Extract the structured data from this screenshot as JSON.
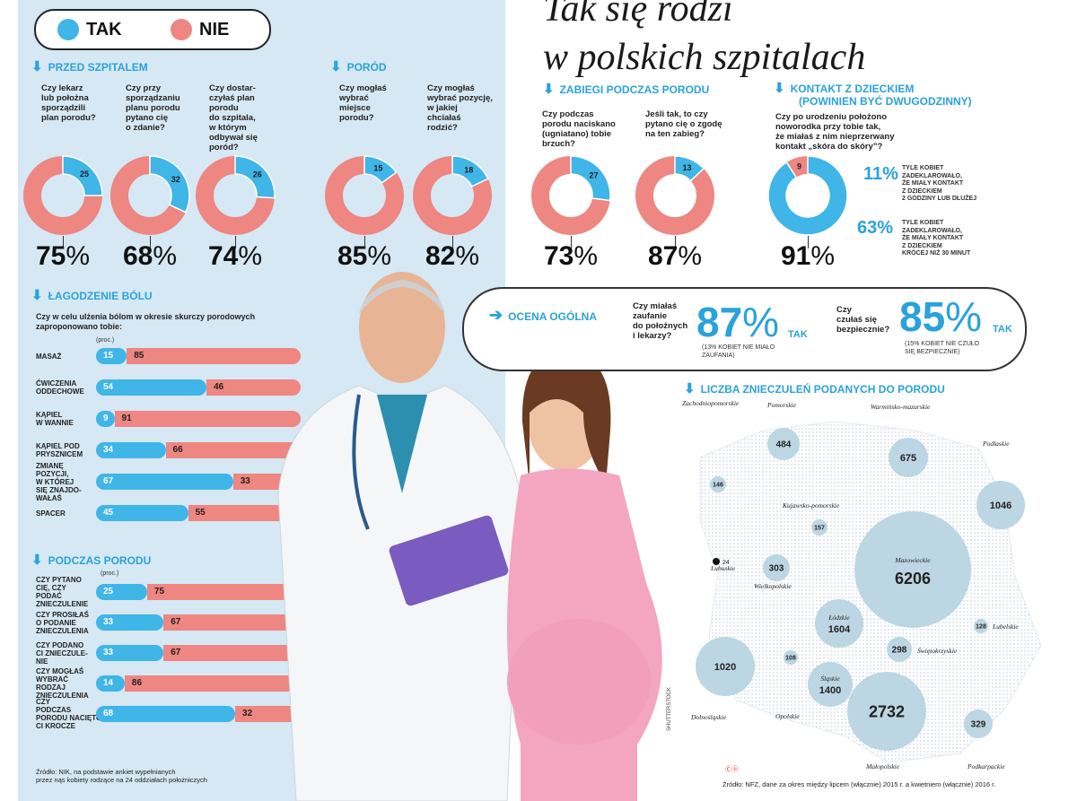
{
  "title": [
    "Tak się rodzi",
    "w polskich szpitalach"
  ],
  "legend": {
    "yes": "TAK",
    "no": "NIE",
    "yes_color": "#3fb5e8",
    "no_color": "#ee8682"
  },
  "sections": {
    "przed": "PRZED SZPITALEM",
    "porod": "PORÓD",
    "zabiegi": "ZABIEGI PODCZAS PORODU",
    "kontakt": [
      "KONTAKT Z DZIECKIEM",
      "(POWINIEN BYĆ DWUGODZINNY)"
    ],
    "lagodzenie": "ŁAGODZENIE BÓLU",
    "podczas": "PODCZAS PORODU",
    "ocena": "OCENA OGÓLNA",
    "liczba": "LICZBA ZNIECZULEŃ PODANYCH DO PORODU"
  },
  "kontakt_question": [
    "Czy po urodzeniu położono",
    "noworodka przy tobie tak,",
    "że miałaś z nim nieprzerwany",
    "kontakt „skóra do skóry”?"
  ],
  "kontakt_notes": [
    {
      "value": "11%",
      "lines": [
        "TYLE KOBIET",
        "ZADEKLAROWAŁO,",
        "ŻE MIAŁY KONTAKT",
        "Z DZIECKIEM",
        "2 GODZINY LUB DŁUŻEJ"
      ]
    },
    {
      "value": "63%",
      "lines": [
        "TYLE KOBIET",
        "ZADEKLAROWAŁO,",
        "ŻE MIAŁY KONTAKT",
        "Z DZIECKIEM",
        "KRÓCEJ NIŻ 30 MINUT"
      ]
    }
  ],
  "lagodzenie_question": [
    "Czy w celu ulżenia bólom w okresie skurczy porodowych",
    "zaproponowano tobie:"
  ],
  "proc": "(proc.)",
  "ocena": [
    {
      "q": [
        "Czy miałaś",
        "zaufanie",
        "do położnych",
        "i lekarzy?"
      ],
      "value": "87%",
      "tak": "TAK",
      "note": [
        "(13% KOBIET NIE MIAŁO",
        "ZAUFANIA)"
      ]
    },
    {
      "q": [
        "Czy",
        "czułaś się",
        "bezpiecznie?"
      ],
      "value": "85%",
      "tak": "TAK",
      "note": [
        "(15% KOBIET NIE CZUŁO",
        "SIĘ BEZPIECZNIE)"
      ]
    }
  ],
  "source_left": [
    "Źródło: NIK, na podstawie ankiet wypełnianych",
    "przez nąs kobiety rodzące na 24 oddziałach położniczych"
  ],
  "source_right": "Źródło: NFZ, dane za okres między lipcem (włącznie) 2015 r. a kwietniem (włącznie) 2016 r.",
  "copyright": "Ⓒⓑ",
  "photo_credit": "SHUTTERSTOCK",
  "map_marker_label": "24",
  "chart_data": [
    {
      "type": "pie",
      "name": "donuts",
      "items": [
        {
          "section": "przed",
          "q": [
            "Czy lekarz",
            "lub położna",
            "sporządzili",
            "plan porodu?"
          ],
          "yes": 25,
          "no": 75,
          "label": "75%"
        },
        {
          "section": "przed",
          "q": [
            "Czy przy",
            "sporządzaniu",
            "planu porodu",
            "pytano cię",
            "o zdanie?"
          ],
          "yes": 32,
          "no": 68,
          "label": "68%"
        },
        {
          "section": "przed",
          "q": [
            "Czy dostar-",
            "czyłaś plan",
            "porodu",
            "do szpitala,",
            "w którym",
            "odbywał się",
            "poród?"
          ],
          "yes": 26,
          "no": 74,
          "label": "74%"
        },
        {
          "section": "porod",
          "q": [
            "Czy mogłaś",
            "wybrać",
            "miejsce",
            "porodu?"
          ],
          "yes": 15,
          "no": 85,
          "label": "85%"
        },
        {
          "section": "porod",
          "q": [
            "Czy mogłaś",
            "wybrać pozycję,",
            "w jakiej",
            "chciałaś",
            "rodzić?"
          ],
          "yes": 18,
          "no": 82,
          "label": "82%"
        },
        {
          "section": "zabiegi",
          "q": [
            "Czy podczas",
            "porodu naciskano",
            "(ugniatano) tobie",
            "brzuch?"
          ],
          "yes": 27,
          "no": 73,
          "label": "73%"
        },
        {
          "section": "zabiegi",
          "q": [
            "Jeśli tak, to czy",
            "pytano cię o zgodę",
            "na ten zabieg?"
          ],
          "yes": 13,
          "no": 87,
          "label": "87%"
        },
        {
          "section": "kontakt",
          "q": [],
          "yes": 91,
          "no": 9,
          "label": "91%"
        }
      ]
    },
    {
      "type": "bar",
      "name": "lagodzenie",
      "categories": [
        [
          "MASAŻ"
        ],
        [
          "ĆWICZENIA",
          "ODDECHOWE"
        ],
        [
          "KĄPIEL",
          "W WANNIE"
        ],
        [
          "KĄPIEL POD",
          "PRYSZNICEM"
        ],
        [
          "ZMIANĘ",
          "POZYCJI,",
          "W KTÓREJ",
          "SIĘ ZNAJDO-",
          "WAŁAŚ"
        ],
        [
          "SPACER"
        ]
      ],
      "series": [
        {
          "name": "TAK",
          "values": [
            15,
            54,
            9,
            34,
            67,
            45
          ]
        },
        {
          "name": "NIE",
          "values": [
            85,
            46,
            91,
            66,
            33,
            55
          ]
        }
      ]
    },
    {
      "type": "bar",
      "name": "podczas",
      "categories": [
        [
          "CZY PYTANO",
          "CIĘ, CZY",
          "PODAĆ",
          "ZNIECZULENIE"
        ],
        [
          "CZY PROSIŁAŚ",
          "O PODANIE",
          "ZNIECZULENIA"
        ],
        [
          "CZY PODANO",
          "CI ZNIECZULE-",
          "NIE"
        ],
        [
          "CZY MOGŁAŚ",
          "WYBRAĆ",
          "RODZAJ",
          "ZNIECZULENIA"
        ],
        [
          "CZY",
          "PODCZAS",
          "PORODU NACIĘTO",
          "CI KROCZE"
        ]
      ],
      "series": [
        {
          "name": "TAK",
          "values": [
            25,
            33,
            33,
            14,
            68
          ]
        },
        {
          "name": "NIE",
          "values": [
            75,
            67,
            67,
            86,
            32
          ]
        }
      ]
    },
    {
      "type": "scatter",
      "name": "map",
      "items": [
        {
          "region": "Zachodniopomorskie",
          "value": 146
        },
        {
          "region": "Pomorskie",
          "value": 484
        },
        {
          "region": "Warmińsko-mazurskie",
          "value": 675
        },
        {
          "region": "Podlaskie",
          "value": 1046
        },
        {
          "region": "Kujawsko-pomorskie",
          "value": 157
        },
        {
          "region": "Lubuskie",
          "value": 24
        },
        {
          "region": "Wielkopolskie",
          "value": 303
        },
        {
          "region": "Mazowieckie",
          "value": 6206
        },
        {
          "region": "Łódzkie",
          "value": 1604
        },
        {
          "region": "Lubelskie",
          "value": 128
        },
        {
          "region": "Świętokrzyskie",
          "value": 298
        },
        {
          "region": "Dolnośląskie",
          "value": 1020
        },
        {
          "region": "Opolskie",
          "value": 108
        },
        {
          "region": "Śląskie",
          "value": 1400
        },
        {
          "region": "Małopolskie",
          "value": 2732
        },
        {
          "region": "Podkarpackie",
          "value": 329
        }
      ]
    }
  ]
}
